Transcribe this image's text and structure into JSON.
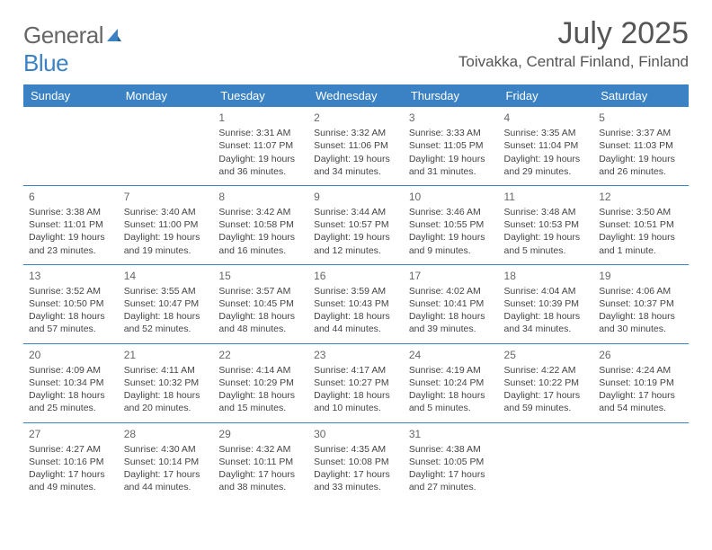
{
  "brand": {
    "part1": "General",
    "part2": "Blue"
  },
  "title": "July 2025",
  "location": "Toivakka, Central Finland, Finland",
  "colors": {
    "accent": "#3b82c4",
    "text": "#444",
    "header_text": "#ffffff",
    "bg": "#ffffff"
  },
  "day_headers": [
    "Sunday",
    "Monday",
    "Tuesday",
    "Wednesday",
    "Thursday",
    "Friday",
    "Saturday"
  ],
  "weeks": [
    [
      null,
      null,
      {
        "n": "1",
        "sr": "3:31 AM",
        "ss": "11:07 PM",
        "dl": "19 hours and 36 minutes."
      },
      {
        "n": "2",
        "sr": "3:32 AM",
        "ss": "11:06 PM",
        "dl": "19 hours and 34 minutes."
      },
      {
        "n": "3",
        "sr": "3:33 AM",
        "ss": "11:05 PM",
        "dl": "19 hours and 31 minutes."
      },
      {
        "n": "4",
        "sr": "3:35 AM",
        "ss": "11:04 PM",
        "dl": "19 hours and 29 minutes."
      },
      {
        "n": "5",
        "sr": "3:37 AM",
        "ss": "11:03 PM",
        "dl": "19 hours and 26 minutes."
      }
    ],
    [
      {
        "n": "6",
        "sr": "3:38 AM",
        "ss": "11:01 PM",
        "dl": "19 hours and 23 minutes."
      },
      {
        "n": "7",
        "sr": "3:40 AM",
        "ss": "11:00 PM",
        "dl": "19 hours and 19 minutes."
      },
      {
        "n": "8",
        "sr": "3:42 AM",
        "ss": "10:58 PM",
        "dl": "19 hours and 16 minutes."
      },
      {
        "n": "9",
        "sr": "3:44 AM",
        "ss": "10:57 PM",
        "dl": "19 hours and 12 minutes."
      },
      {
        "n": "10",
        "sr": "3:46 AM",
        "ss": "10:55 PM",
        "dl": "19 hours and 9 minutes."
      },
      {
        "n": "11",
        "sr": "3:48 AM",
        "ss": "10:53 PM",
        "dl": "19 hours and 5 minutes."
      },
      {
        "n": "12",
        "sr": "3:50 AM",
        "ss": "10:51 PM",
        "dl": "19 hours and 1 minute."
      }
    ],
    [
      {
        "n": "13",
        "sr": "3:52 AM",
        "ss": "10:50 PM",
        "dl": "18 hours and 57 minutes."
      },
      {
        "n": "14",
        "sr": "3:55 AM",
        "ss": "10:47 PM",
        "dl": "18 hours and 52 minutes."
      },
      {
        "n": "15",
        "sr": "3:57 AM",
        "ss": "10:45 PM",
        "dl": "18 hours and 48 minutes."
      },
      {
        "n": "16",
        "sr": "3:59 AM",
        "ss": "10:43 PM",
        "dl": "18 hours and 44 minutes."
      },
      {
        "n": "17",
        "sr": "4:02 AM",
        "ss": "10:41 PM",
        "dl": "18 hours and 39 minutes."
      },
      {
        "n": "18",
        "sr": "4:04 AM",
        "ss": "10:39 PM",
        "dl": "18 hours and 34 minutes."
      },
      {
        "n": "19",
        "sr": "4:06 AM",
        "ss": "10:37 PM",
        "dl": "18 hours and 30 minutes."
      }
    ],
    [
      {
        "n": "20",
        "sr": "4:09 AM",
        "ss": "10:34 PM",
        "dl": "18 hours and 25 minutes."
      },
      {
        "n": "21",
        "sr": "4:11 AM",
        "ss": "10:32 PM",
        "dl": "18 hours and 20 minutes."
      },
      {
        "n": "22",
        "sr": "4:14 AM",
        "ss": "10:29 PM",
        "dl": "18 hours and 15 minutes."
      },
      {
        "n": "23",
        "sr": "4:17 AM",
        "ss": "10:27 PM",
        "dl": "18 hours and 10 minutes."
      },
      {
        "n": "24",
        "sr": "4:19 AM",
        "ss": "10:24 PM",
        "dl": "18 hours and 5 minutes."
      },
      {
        "n": "25",
        "sr": "4:22 AM",
        "ss": "10:22 PM",
        "dl": "17 hours and 59 minutes."
      },
      {
        "n": "26",
        "sr": "4:24 AM",
        "ss": "10:19 PM",
        "dl": "17 hours and 54 minutes."
      }
    ],
    [
      {
        "n": "27",
        "sr": "4:27 AM",
        "ss": "10:16 PM",
        "dl": "17 hours and 49 minutes."
      },
      {
        "n": "28",
        "sr": "4:30 AM",
        "ss": "10:14 PM",
        "dl": "17 hours and 44 minutes."
      },
      {
        "n": "29",
        "sr": "4:32 AM",
        "ss": "10:11 PM",
        "dl": "17 hours and 38 minutes."
      },
      {
        "n": "30",
        "sr": "4:35 AM",
        "ss": "10:08 PM",
        "dl": "17 hours and 33 minutes."
      },
      {
        "n": "31",
        "sr": "4:38 AM",
        "ss": "10:05 PM",
        "dl": "17 hours and 27 minutes."
      },
      null,
      null
    ]
  ],
  "labels": {
    "sunrise": "Sunrise: ",
    "sunset": "Sunset: ",
    "daylight": "Daylight: "
  }
}
